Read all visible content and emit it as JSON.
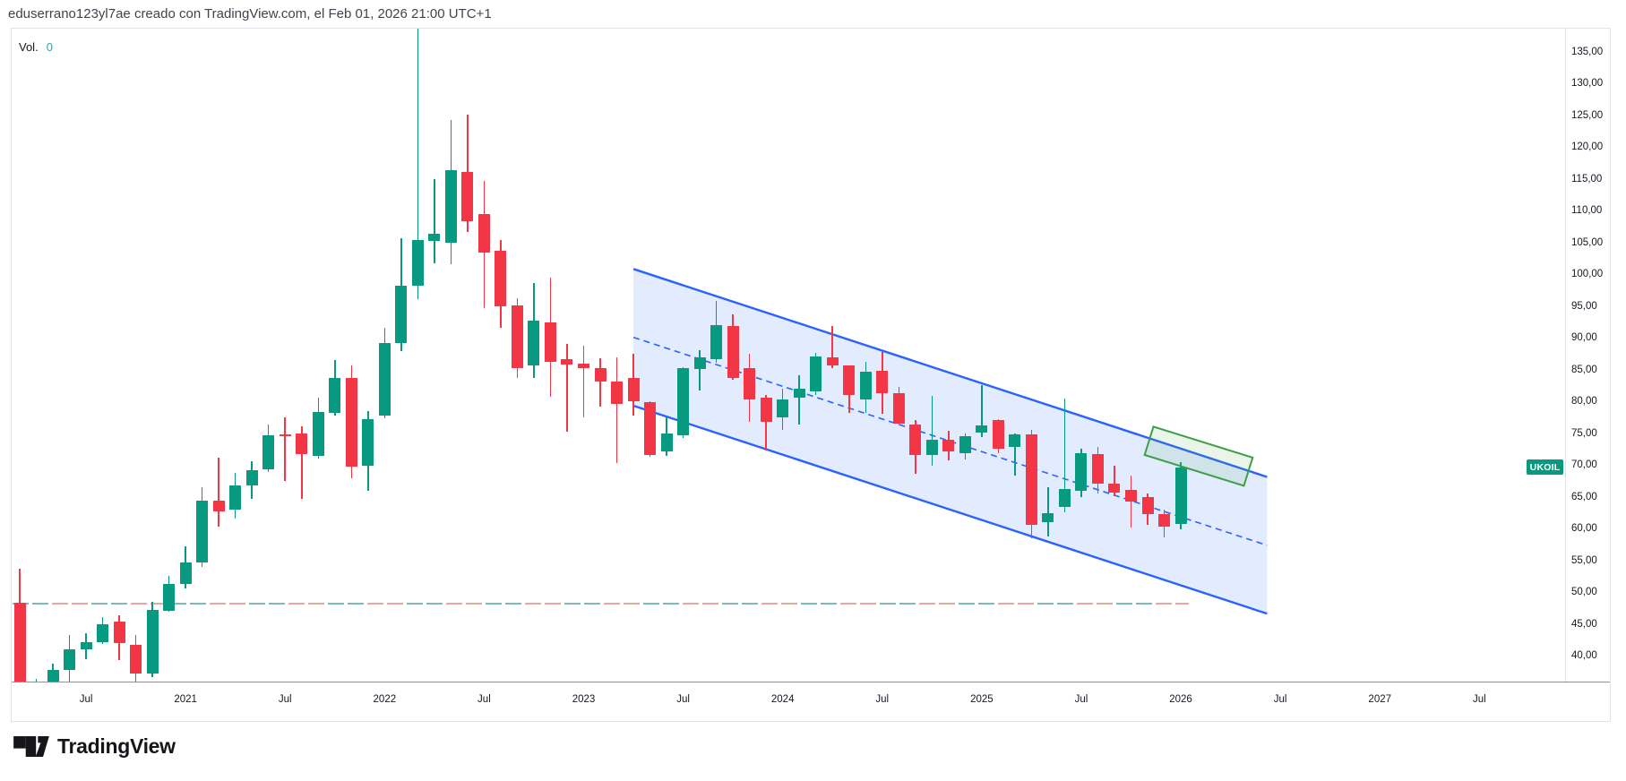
{
  "header": {
    "title": "eduserrano123yl7ae creado con TradingView.com, el Feb 01, 2026 21:00 UTC+1"
  },
  "indicator": {
    "label": "Vol.",
    "value": "0"
  },
  "symbol_badge": {
    "text": "UKOIL"
  },
  "logo": {
    "text": "TradingView"
  },
  "colors": {
    "up": "#089981",
    "down": "#f23645",
    "channel_line": "#2962ff",
    "channel_fill": "rgba(41,98,255,0.13)",
    "box_border": "#3f9e46",
    "box_fill": "rgba(76,175,80,0.13)",
    "dash_teal": "#7abcbe",
    "dash_red": "#e9a6a3",
    "badge_bg": "#089981",
    "vol_value": "#2aa79f",
    "axis_text": "#131722"
  },
  "price_axis": {
    "ticks": [
      {
        "label": "135,00",
        "value": 135
      },
      {
        "label": "130,00",
        "value": 130
      },
      {
        "label": "125,00",
        "value": 125
      },
      {
        "label": "120,00",
        "value": 120
      },
      {
        "label": "115,00",
        "value": 115
      },
      {
        "label": "110,00",
        "value": 110
      },
      {
        "label": "105,00",
        "value": 105
      },
      {
        "label": "100,00",
        "value": 100
      },
      {
        "label": "95,00",
        "value": 95
      },
      {
        "label": "90,00",
        "value": 90
      },
      {
        "label": "85,00",
        "value": 85
      },
      {
        "label": "80,00",
        "value": 80
      },
      {
        "label": "75,00",
        "value": 75
      },
      {
        "label": "70,00",
        "value": 70
      },
      {
        "label": "65,00",
        "value": 65
      },
      {
        "label": "60,00",
        "value": 60
      },
      {
        "label": "55,00",
        "value": 55
      },
      {
        "label": "50,00",
        "value": 50
      },
      {
        "label": "45,00",
        "value": 45
      },
      {
        "label": "40,00",
        "value": 40
      }
    ]
  },
  "time_axis": {
    "ticks": [
      {
        "label": "Jul",
        "index": 4
      },
      {
        "label": "2021",
        "index": 10
      },
      {
        "label": "Jul",
        "index": 16
      },
      {
        "label": "2022",
        "index": 22
      },
      {
        "label": "Jul",
        "index": 28
      },
      {
        "label": "2023",
        "index": 34
      },
      {
        "label": "Jul",
        "index": 40
      },
      {
        "label": "2024",
        "index": 46
      },
      {
        "label": "Jul",
        "index": 52
      },
      {
        "label": "2025",
        "index": 58
      },
      {
        "label": "Jul",
        "index": 64
      },
      {
        "label": "2026",
        "index": 70
      },
      {
        "label": "Jul",
        "index": 76
      },
      {
        "label": "2027",
        "index": 82
      },
      {
        "label": "Jul",
        "index": 88
      }
    ]
  },
  "chart_data": {
    "type": "candlestick",
    "symbol": "UKOIL",
    "timeframe": "monthly",
    "visible_price_range": [
      35.9,
      138.6
    ],
    "candles": [
      [
        "2020-03",
        48.3,
        53.7,
        16.0,
        22.7
      ],
      [
        "2020-04",
        22.7,
        36.4,
        16.0,
        25.3
      ],
      [
        "2020-05",
        26.4,
        38.7,
        25.5,
        37.8
      ],
      [
        "2020-06",
        37.8,
        43.2,
        35.5,
        41.0
      ],
      [
        "2020-07",
        41.0,
        43.5,
        39.5,
        42.1
      ],
      [
        "2020-08",
        42.1,
        46.0,
        41.8,
        45.0
      ],
      [
        "2020-09",
        45.3,
        46.3,
        39.3,
        41.9
      ],
      [
        "2020-10",
        41.7,
        43.2,
        35.7,
        37.2
      ],
      [
        "2020-11",
        37.2,
        48.5,
        36.6,
        47.2
      ],
      [
        "2020-12",
        47.1,
        52.5,
        46.9,
        51.3
      ],
      [
        "2021-01",
        51.2,
        57.2,
        50.5,
        54.6
      ],
      [
        "2021-02",
        54.6,
        66.5,
        53.9,
        64.4
      ],
      [
        "2021-03",
        64.4,
        71.1,
        60.3,
        62.7
      ],
      [
        "2021-04",
        62.9,
        68.8,
        61.5,
        66.7
      ],
      [
        "2021-05",
        66.7,
        70.5,
        64.6,
        69.2
      ],
      [
        "2021-06",
        69.3,
        76.4,
        68.9,
        74.7
      ],
      [
        "2021-07",
        74.8,
        77.5,
        67.4,
        74.5
      ],
      [
        "2021-08",
        75.0,
        76.1,
        64.6,
        71.7
      ],
      [
        "2021-09",
        71.4,
        80.5,
        71.0,
        78.3
      ],
      [
        "2021-10",
        78.2,
        86.5,
        77.8,
        83.6
      ],
      [
        "2021-11",
        83.7,
        85.6,
        67.9,
        69.7
      ],
      [
        "2021-12",
        69.9,
        78.5,
        65.9,
        77.2
      ],
      [
        "2022-01",
        77.7,
        91.5,
        77.3,
        89.2
      ],
      [
        "2022-02",
        89.2,
        105.7,
        87.9,
        98.2
      ],
      [
        "2022-03",
        98.2,
        139.0,
        96.0,
        105.4
      ],
      [
        "2022-04",
        105.2,
        114.9,
        101.7,
        106.4
      ],
      [
        "2022-05",
        104.9,
        124.2,
        101.5,
        116.3
      ],
      [
        "2022-06",
        116.0,
        125.1,
        106.6,
        108.3
      ],
      [
        "2022-07",
        109.4,
        114.6,
        94.6,
        103.4
      ],
      [
        "2022-08",
        103.7,
        105.4,
        91.5,
        94.9
      ],
      [
        "2022-09",
        95.1,
        96.2,
        83.6,
        85.2
      ],
      [
        "2022-10",
        85.6,
        98.6,
        83.6,
        92.7
      ],
      [
        "2022-11",
        92.4,
        99.4,
        80.7,
        86.2
      ],
      [
        "2022-12",
        86.6,
        89.0,
        75.2,
        85.8
      ],
      [
        "2023-01",
        85.9,
        88.7,
        77.5,
        85.2
      ],
      [
        "2023-02",
        85.2,
        86.8,
        79.2,
        83.1
      ],
      [
        "2023-03",
        83.1,
        86.9,
        70.3,
        79.6
      ],
      [
        "2023-04",
        83.6,
        87.5,
        77.7,
        80.0
      ],
      [
        "2023-05",
        79.8,
        80.0,
        71.3,
        71.6
      ],
      [
        "2023-06",
        72.1,
        77.6,
        71.4,
        74.9
      ],
      [
        "2023-07",
        74.6,
        85.4,
        74.2,
        85.2
      ],
      [
        "2023-08",
        85.0,
        88.0,
        81.7,
        86.9
      ],
      [
        "2023-09",
        86.6,
        95.8,
        86.0,
        92.0
      ],
      [
        "2023-10",
        91.9,
        93.7,
        83.4,
        83.6
      ],
      [
        "2023-11",
        85.2,
        87.5,
        76.8,
        80.3
      ],
      [
        "2023-12",
        80.6,
        81.0,
        72.3,
        76.8
      ],
      [
        "2024-01",
        77.5,
        82.0,
        75.5,
        80.3
      ],
      [
        "2024-02",
        80.6,
        84.1,
        76.4,
        82.0
      ],
      [
        "2024-03",
        81.6,
        87.6,
        81.0,
        87.0
      ],
      [
        "2024-04",
        86.9,
        91.8,
        85.2,
        85.6
      ],
      [
        "2024-05",
        85.6,
        85.7,
        78.2,
        81.0
      ],
      [
        "2024-06",
        80.3,
        86.2,
        78.2,
        84.6
      ],
      [
        "2024-07",
        84.8,
        87.8,
        78.0,
        81.2
      ],
      [
        "2024-08",
        81.2,
        82.3,
        76.3,
        76.5
      ],
      [
        "2024-09",
        76.4,
        77.0,
        68.6,
        71.6
      ],
      [
        "2024-10",
        71.6,
        80.8,
        69.9,
        74.0
      ],
      [
        "2024-11",
        74.0,
        75.3,
        70.7,
        72.1
      ],
      [
        "2024-12",
        71.9,
        74.9,
        70.9,
        74.5
      ],
      [
        "2025-01",
        75.0,
        82.6,
        74.3,
        76.2
      ],
      [
        "2025-02",
        77.0,
        77.2,
        71.8,
        72.5
      ],
      [
        "2025-03",
        72.8,
        75.0,
        68.3,
        74.8
      ],
      [
        "2025-04",
        74.8,
        75.5,
        58.5,
        60.5
      ],
      [
        "2025-05",
        61.0,
        66.5,
        58.7,
        62.4
      ],
      [
        "2025-06",
        63.4,
        80.4,
        62.5,
        66.2
      ],
      [
        "2025-07",
        65.9,
        72.5,
        65.0,
        71.9
      ],
      [
        "2025-08",
        71.7,
        72.8,
        65.5,
        67.1
      ],
      [
        "2025-09",
        67.1,
        69.9,
        65.0,
        65.7
      ],
      [
        "2025-10",
        66.1,
        68.3,
        60.1,
        64.2
      ],
      [
        "2025-11",
        64.9,
        65.5,
        60.6,
        62.2
      ],
      [
        "2025-12",
        62.3,
        63.0,
        58.6,
        60.3
      ],
      [
        "2026-01",
        60.7,
        70.4,
        59.9,
        69.6
      ]
    ],
    "last_price": 69.6,
    "drawings": {
      "parallel_channel": {
        "start_month": "2023-04",
        "end_month": "2026-06",
        "start_index": 37,
        "end_index": 75.2,
        "top_start_price": 100.8,
        "top_end_price": 68.1,
        "bottom_start_price": 79.3,
        "bottom_end_price": 46.6,
        "middle_line_style": "dashed"
      },
      "rotated_rectangle": {
        "center_index": 71.1,
        "center_price": 71.4,
        "length_months": 6.4,
        "height_price_units": 4.9,
        "angle_deg": 17.3
      },
      "horizontal_dashed_level": {
        "price": 48.2,
        "from_left_edge": true,
        "end_index": 70.5
      }
    }
  }
}
